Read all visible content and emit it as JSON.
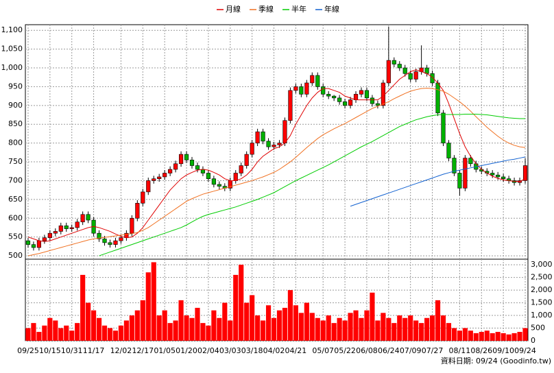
{
  "chart_data": [
    {
      "type": "candlestick",
      "categories": [
        "09/25",
        null,
        null,
        null,
        "10/15",
        null,
        null,
        null,
        "10/31",
        null,
        null,
        null,
        "11/17",
        null,
        null,
        null,
        null,
        "12/02",
        null,
        null,
        null,
        "12/17",
        null,
        null,
        null,
        "01/05",
        null,
        null,
        null,
        "01/20",
        null,
        null,
        null,
        "02/04",
        null,
        null,
        null,
        "03/03",
        null,
        null,
        null,
        "03/18",
        null,
        null,
        null,
        "04/02",
        null,
        null,
        null,
        "04/21",
        null,
        null,
        null,
        null,
        "05/07",
        null,
        null,
        null,
        "05/22",
        null,
        null,
        null,
        "06/08",
        null,
        null,
        null,
        "06/24",
        null,
        null,
        null,
        "07/09",
        null,
        null,
        null,
        "07/27",
        null,
        null,
        null,
        null,
        "08/11",
        null,
        null,
        null,
        "08/26",
        null,
        null,
        null,
        "09/10",
        null,
        null,
        null,
        "09/24"
      ],
      "open": [
        540,
        530,
        522,
        540,
        548,
        560,
        565,
        580,
        572,
        575,
        590,
        610,
        595,
        560,
        545,
        535,
        530,
        540,
        548,
        560,
        600,
        640,
        670,
        700,
        705,
        710,
        720,
        730,
        745,
        770,
        755,
        740,
        730,
        720,
        705,
        690,
        685,
        680,
        700,
        720,
        740,
        770,
        800,
        830,
        805,
        790,
        795,
        800,
        860,
        940,
        950,
        930,
        960,
        980,
        950,
        930,
        925,
        920,
        910,
        900,
        915,
        930,
        940,
        920,
        905,
        900,
        960,
        1020,
        1010,
        1000,
        985,
        970,
        990,
        1000,
        985,
        960,
        880,
        800,
        760,
        720,
        680,
        760,
        745,
        730,
        725,
        720,
        715,
        710,
        705,
        700,
        695,
        700
      ],
      "high": [
        548,
        538,
        548,
        556,
        568,
        573,
        588,
        588,
        583,
        598,
        618,
        618,
        603,
        568,
        553,
        543,
        548,
        556,
        568,
        608,
        648,
        678,
        708,
        713,
        718,
        728,
        738,
        753,
        778,
        778,
        763,
        748,
        738,
        728,
        713,
        698,
        693,
        708,
        728,
        748,
        778,
        808,
        838,
        838,
        813,
        803,
        808,
        868,
        948,
        958,
        958,
        968,
        988,
        988,
        958,
        938,
        928,
        928,
        918,
        923,
        938,
        948,
        948,
        928,
        913,
        968,
        1110,
        1028,
        1018,
        1008,
        993,
        998,
        1060,
        1008,
        993,
        968,
        888,
        808,
        768,
        728,
        768,
        768,
        753,
        738,
        733,
        728,
        723,
        718,
        713,
        708,
        708,
        760
      ],
      "low": [
        522,
        514,
        514,
        532,
        540,
        552,
        557,
        564,
        564,
        567,
        582,
        587,
        552,
        537,
        527,
        522,
        522,
        532,
        540,
        552,
        592,
        632,
        662,
        692,
        697,
        702,
        712,
        722,
        737,
        747,
        732,
        722,
        712,
        697,
        682,
        677,
        672,
        672,
        692,
        712,
        732,
        762,
        792,
        797,
        782,
        782,
        787,
        792,
        852,
        932,
        922,
        922,
        952,
        942,
        922,
        917,
        912,
        902,
        892,
        892,
        907,
        922,
        912,
        897,
        892,
        892,
        952,
        1002,
        992,
        977,
        962,
        962,
        982,
        977,
        952,
        872,
        792,
        752,
        712,
        660,
        672,
        737,
        722,
        717,
        712,
        707,
        702,
        697,
        692,
        687,
        687,
        692
      ],
      "close": [
        530,
        522,
        540,
        548,
        560,
        565,
        580,
        572,
        575,
        590,
        610,
        595,
        560,
        545,
        535,
        530,
        540,
        548,
        560,
        600,
        640,
        670,
        700,
        705,
        710,
        720,
        730,
        745,
        770,
        755,
        740,
        730,
        720,
        705,
        690,
        685,
        680,
        700,
        720,
        740,
        770,
        800,
        830,
        805,
        790,
        795,
        800,
        860,
        940,
        950,
        930,
        960,
        980,
        950,
        930,
        925,
        920,
        910,
        900,
        915,
        930,
        940,
        920,
        905,
        900,
        960,
        1020,
        1010,
        1000,
        985,
        970,
        990,
        1000,
        985,
        960,
        880,
        800,
        760,
        720,
        680,
        760,
        745,
        730,
        725,
        720,
        715,
        710,
        705,
        700,
        695,
        700,
        740
      ],
      "up_color": "#ff0000",
      "down_color": "#00b000",
      "series": [
        {
          "name": "月線",
          "color": "#e00000",
          "values": [
            550,
            545,
            540,
            538,
            540,
            545,
            550,
            555,
            560,
            565,
            570,
            575,
            578,
            575,
            570,
            565,
            558,
            552,
            548,
            550,
            560,
            575,
            595,
            615,
            635,
            655,
            675,
            690,
            705,
            715,
            722,
            728,
            730,
            728,
            722,
            715,
            705,
            700,
            700,
            705,
            715,
            730,
            750,
            765,
            775,
            785,
            790,
            800,
            820,
            850,
            875,
            900,
            920,
            935,
            945,
            945,
            940,
            935,
            925,
            920,
            915,
            915,
            915,
            915,
            915,
            925,
            940,
            955,
            970,
            980,
            990,
            995,
            990,
            985,
            975,
            960,
            940,
            905,
            865,
            825,
            790,
            765,
            745,
            730,
            720,
            712,
            706,
            702,
            700,
            698,
            698,
            705
          ]
        },
        {
          "name": "季線",
          "color": "#f07020",
          "values": [
            500,
            503,
            506,
            510,
            514,
            518,
            522,
            526,
            530,
            534,
            538,
            542,
            545,
            547,
            549,
            551,
            553,
            555,
            557,
            559,
            562,
            568,
            575,
            585,
            595,
            605,
            615,
            625,
            635,
            645,
            652,
            658,
            664,
            668,
            672,
            676,
            680,
            684,
            688,
            692,
            696,
            700,
            705,
            710,
            716,
            722,
            730,
            740,
            750,
            762,
            775,
            788,
            800,
            812,
            822,
            830,
            838,
            845,
            852,
            860,
            868,
            876,
            884,
            892,
            898,
            904,
            910,
            918,
            925,
            932,
            938,
            942,
            945,
            946,
            945,
            942,
            938,
            930,
            920,
            910,
            898,
            885,
            870,
            856,
            842,
            830,
            818,
            808,
            800,
            794,
            790,
            788
          ]
        },
        {
          "name": "半年",
          "color": "#00cc00",
          "values": [
            null,
            null,
            null,
            null,
            null,
            null,
            null,
            null,
            null,
            null,
            null,
            null,
            null,
            500,
            505,
            510,
            515,
            520,
            525,
            530,
            535,
            540,
            545,
            550,
            555,
            560,
            565,
            570,
            575,
            582,
            590,
            598,
            605,
            610,
            614,
            618,
            622,
            626,
            630,
            635,
            640,
            645,
            650,
            656,
            662,
            668,
            676,
            684,
            692,
            700,
            707,
            714,
            721,
            728,
            735,
            742,
            750,
            758,
            766,
            774,
            782,
            790,
            797,
            804,
            812,
            820,
            828,
            836,
            844,
            850,
            856,
            862,
            866,
            870,
            873,
            875,
            876,
            876,
            876,
            876,
            877,
            877,
            877,
            876,
            875,
            873,
            871,
            869,
            867,
            866,
            865,
            865
          ]
        },
        {
          "name": "年線",
          "color": "#1060d0",
          "values": [
            null,
            null,
            null,
            null,
            null,
            null,
            null,
            null,
            null,
            null,
            null,
            null,
            null,
            null,
            null,
            null,
            null,
            null,
            null,
            null,
            null,
            null,
            null,
            null,
            null,
            null,
            null,
            null,
            null,
            null,
            null,
            null,
            null,
            null,
            null,
            null,
            null,
            null,
            null,
            null,
            null,
            null,
            null,
            null,
            null,
            null,
            null,
            null,
            null,
            null,
            null,
            null,
            null,
            null,
            null,
            null,
            null,
            null,
            null,
            632,
            637,
            642,
            647,
            652,
            657,
            662,
            667,
            672,
            677,
            682,
            687,
            692,
            697,
            702,
            707,
            712,
            717,
            721,
            725,
            728,
            731,
            734,
            737,
            740,
            743,
            746,
            749,
            752,
            755,
            757,
            760,
            763
          ]
        }
      ],
      "ylim": [
        491,
        1115
      ],
      "yticks": [
        500,
        550,
        600,
        650,
        700,
        750,
        800,
        850,
        900,
        950,
        {
          "value": 1000,
          "label": "1,000"
        },
        {
          "value": 1050,
          "label": "1,050"
        },
        {
          "value": 1100,
          "label": "1,100"
        }
      ],
      "grid": true
    },
    {
      "type": "bar",
      "values": [
        500,
        700,
        350,
        600,
        900,
        800,
        500,
        600,
        400,
        700,
        2600,
        1500,
        1200,
        900,
        600,
        500,
        400,
        600,
        800,
        1000,
        1200,
        1600,
        2700,
        3100,
        1000,
        1200,
        700,
        800,
        1600,
        1000,
        900,
        1300,
        700,
        600,
        1200,
        900,
        1500,
        800,
        2600,
        3000,
        1500,
        1800,
        1000,
        800,
        1400,
        900,
        1200,
        1300,
        2000,
        1400,
        1100,
        1500,
        1100,
        900,
        800,
        1000,
        700,
        900,
        800,
        1100,
        1200,
        900,
        1200,
        1900,
        800,
        1100,
        900,
        700,
        1000,
        900,
        1000,
        800,
        700,
        900,
        1000,
        1600,
        1000,
        700,
        500,
        400,
        500,
        400,
        300,
        350,
        400,
        300,
        350,
        300,
        250,
        300,
        350,
        500
      ],
      "color": "#ff0000",
      "ylim": [
        0,
        3220
      ],
      "yticks": [
        0,
        500,
        {
          "value": 1000,
          "label": "1,000"
        },
        {
          "value": 1500,
          "label": "1,500"
        },
        {
          "value": 2000,
          "label": "2,000"
        },
        {
          "value": 2500,
          "label": "2,500"
        },
        {
          "value": 3000,
          "label": "3,000"
        }
      ],
      "grid": true
    }
  ],
  "footer": "資料日期: 09/24 (Goodinfo.tw)"
}
